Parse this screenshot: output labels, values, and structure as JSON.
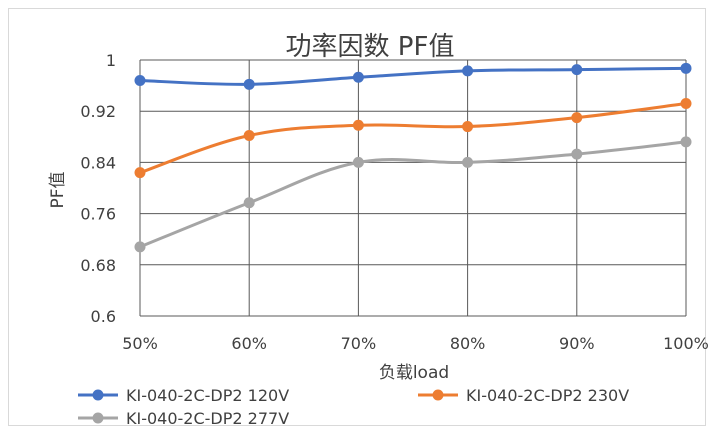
{
  "chart_data": {
    "type": "line",
    "title": "功率因数 PF值",
    "xlabel": "负载load",
    "ylabel": "PF值",
    "categories": [
      "50%",
      "60%",
      "70%",
      "80%",
      "90%",
      "100%"
    ],
    "ylim": [
      0.6,
      1.0
    ],
    "yticks": [
      "0.6",
      "0.68",
      "0.76",
      "0.84",
      "0.92",
      "1"
    ],
    "grid": true,
    "legend_position": "bottom",
    "series": [
      {
        "name": "KI-040-2C-DP2 120V",
        "color": "#4472c4",
        "values": [
          0.968,
          0.962,
          0.973,
          0.983,
          0.985,
          0.987
        ]
      },
      {
        "name": "KI-040-2C-DP2 230V",
        "color": "#ed7d31",
        "values": [
          0.824,
          0.882,
          0.898,
          0.896,
          0.91,
          0.932
        ]
      },
      {
        "name": "KI-040-2C-DP2 277V",
        "color": "#a5a5a5",
        "values": [
          0.708,
          0.777,
          0.84,
          0.84,
          0.853,
          0.872
        ]
      }
    ]
  }
}
